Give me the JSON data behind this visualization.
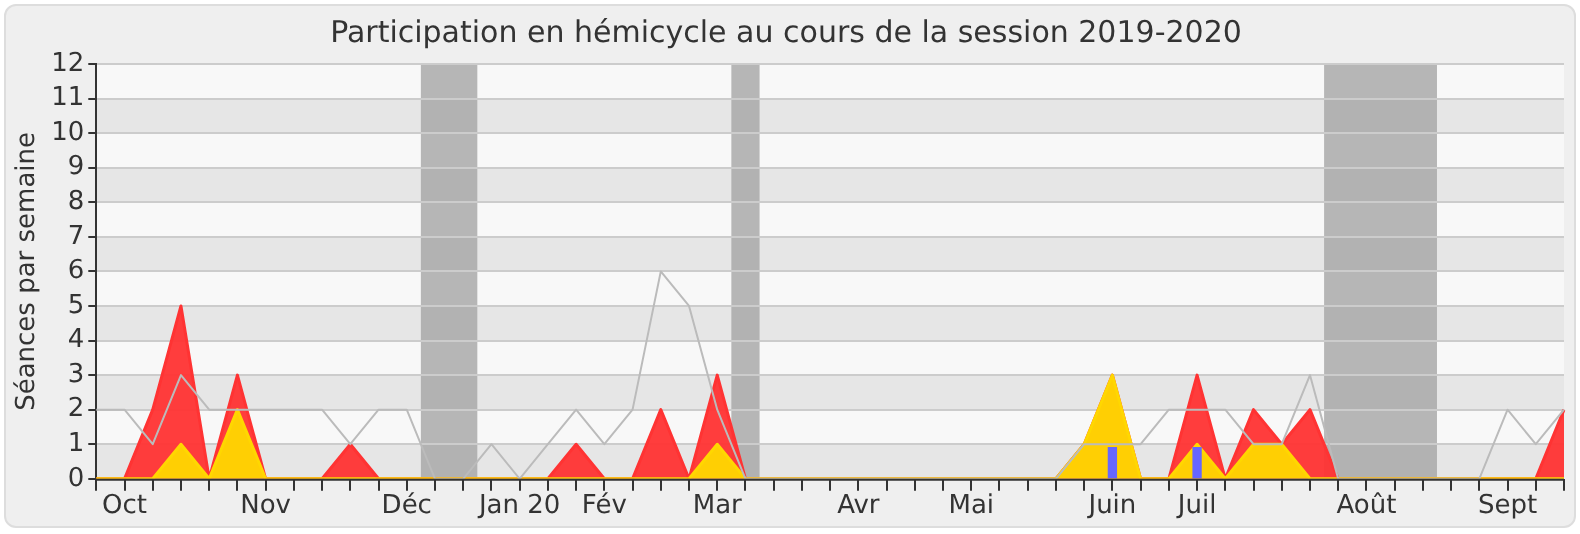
{
  "chart_data": {
    "type": "area",
    "title": "Participation en hémicycle au cours de la session 2019-2020",
    "ylabel": "Séances par semaine",
    "categories": [
      null,
      "Oct",
      null,
      null,
      null,
      null,
      "Nov",
      null,
      null,
      null,
      null,
      "Déc",
      null,
      null,
      null,
      "Jan 20",
      null,
      null,
      "Fév",
      null,
      null,
      null,
      "Mar",
      null,
      null,
      null,
      null,
      "Avr",
      null,
      null,
      null,
      "Mai",
      null,
      null,
      null,
      null,
      "Juin",
      null,
      null,
      "Juil",
      null,
      null,
      null,
      null,
      null,
      "Août",
      null,
      null,
      null,
      null,
      "Sept",
      null,
      null
    ],
    "ylim": [
      0,
      12
    ],
    "yticks": [
      0,
      1,
      2,
      3,
      4,
      5,
      6,
      7,
      8,
      9,
      10,
      11,
      12
    ],
    "grid": true,
    "legend": false,
    "series": [
      {
        "type": "line",
        "color": "#bbbbbb",
        "values": [
          2,
          2,
          1,
          3,
          2,
          2,
          2,
          2,
          2,
          1,
          2,
          2,
          0,
          0,
          1,
          0,
          1,
          2,
          1,
          2,
          6,
          5,
          2,
          0,
          0,
          0,
          0,
          0,
          0,
          0,
          0,
          0,
          0,
          0,
          0,
          1,
          1,
          1,
          2,
          2,
          2,
          1,
          1,
          3,
          0,
          0,
          0,
          0,
          0,
          0,
          2,
          1,
          2
        ]
      },
      {
        "color": "#ff3333",
        "values": [
          0,
          0,
          2,
          5,
          0,
          3,
          0,
          0,
          0,
          1,
          0,
          0,
          0,
          0,
          0,
          0,
          0,
          1,
          0,
          0,
          2,
          0,
          3,
          0,
          0,
          0,
          0,
          0,
          0,
          0,
          0,
          0,
          0,
          0,
          0,
          1,
          3,
          0,
          0,
          3,
          0,
          2,
          1,
          2,
          0,
          0,
          0,
          0,
          0,
          0,
          0,
          0,
          2
        ]
      },
      {
        "color": "#ffd700",
        "values": [
          0,
          0,
          0,
          1,
          0,
          2,
          0,
          0,
          0,
          0,
          0,
          0,
          0,
          0,
          0,
          0,
          0,
          0,
          0,
          0,
          0,
          0,
          1,
          0,
          0,
          0,
          0,
          0,
          0,
          0,
          0,
          0,
          0,
          0,
          0,
          1,
          3,
          0,
          0,
          1,
          0,
          1,
          1,
          0,
          0,
          0,
          0,
          0,
          0,
          0,
          0,
          0,
          0
        ]
      },
      {
        "type": "bar",
        "color": "#6666ff",
        "values": [
          null,
          null,
          null,
          null,
          null,
          null,
          null,
          null,
          null,
          null,
          null,
          null,
          null,
          null,
          null,
          null,
          null,
          null,
          null,
          null,
          null,
          null,
          null,
          null,
          null,
          null,
          null,
          null,
          null,
          null,
          null,
          null,
          null,
          null,
          null,
          null,
          0.9,
          null,
          null,
          0.9,
          null,
          null,
          null,
          null,
          null,
          null,
          null,
          null,
          null,
          null,
          null,
          null,
          null
        ]
      }
    ]
  }
}
